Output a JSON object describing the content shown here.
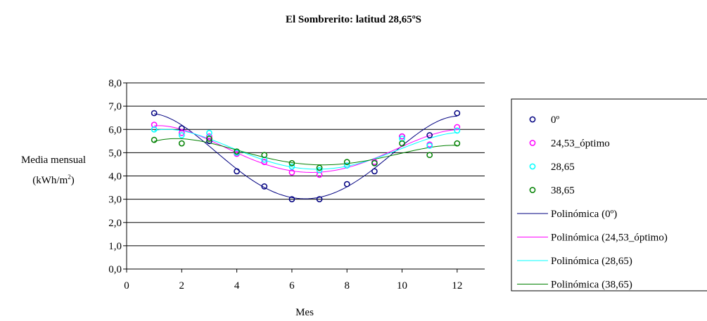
{
  "chart_data": {
    "type": "scatter",
    "title": "El Sombrerito: latitud 28,65ºS",
    "xlabel": "Mes",
    "ylabel_main": "Media mensual",
    "ylabel_unit": "(kWh/m",
    "ylabel_sup": "2",
    "ylabel_close": ")",
    "xlim": [
      0,
      13
    ],
    "ylim": [
      0,
      8
    ],
    "x_ticks": [
      "0",
      "2",
      "4",
      "6",
      "8",
      "10",
      "12"
    ],
    "y_ticks": [
      "0,0",
      "1,0",
      "2,0",
      "3,0",
      "4,0",
      "5,0",
      "6,0",
      "7,0",
      "8,0"
    ],
    "grid": "horizontal",
    "legend_position": "right",
    "x": [
      1,
      2,
      3,
      4,
      5,
      6,
      7,
      8,
      9,
      10,
      11,
      12
    ],
    "series": [
      {
        "name": "0º",
        "color": "#000080",
        "values": [
          6.7,
          6.05,
          5.5,
          4.2,
          3.55,
          3.0,
          3.0,
          3.65,
          4.2,
          5.7,
          5.75,
          6.7
        ]
      },
      {
        "name": "24,53_óptimo",
        "color": "#FF00FF",
        "values": [
          6.2,
          5.85,
          5.7,
          4.95,
          4.6,
          4.15,
          4.05,
          4.45,
          4.6,
          5.7,
          5.35,
          6.1
        ]
      },
      {
        "name": "28,65",
        "color": "#00FFFF",
        "values": [
          6.0,
          5.75,
          5.85,
          5.0,
          4.7,
          4.4,
          4.25,
          4.45,
          4.55,
          5.6,
          5.3,
          5.95
        ]
      },
      {
        "name": "38,65",
        "color": "#008000",
        "values": [
          5.55,
          5.4,
          5.6,
          5.05,
          4.9,
          4.55,
          4.35,
          4.6,
          4.55,
          5.4,
          4.9,
          5.4
        ]
      }
    ],
    "trendlines": [
      {
        "name": "Polinómica (0º)",
        "color": "#000080",
        "fits": "0º"
      },
      {
        "name": "Polinómica (24,53_óptimo)",
        "color": "#FF00FF",
        "fits": "24,53_óptimo"
      },
      {
        "name": "Polinómica (28,65)",
        "color": "#00FFFF",
        "fits": "28,65"
      },
      {
        "name": "Polinómica (38,65)",
        "color": "#008000",
        "fits": "38,65"
      }
    ]
  }
}
